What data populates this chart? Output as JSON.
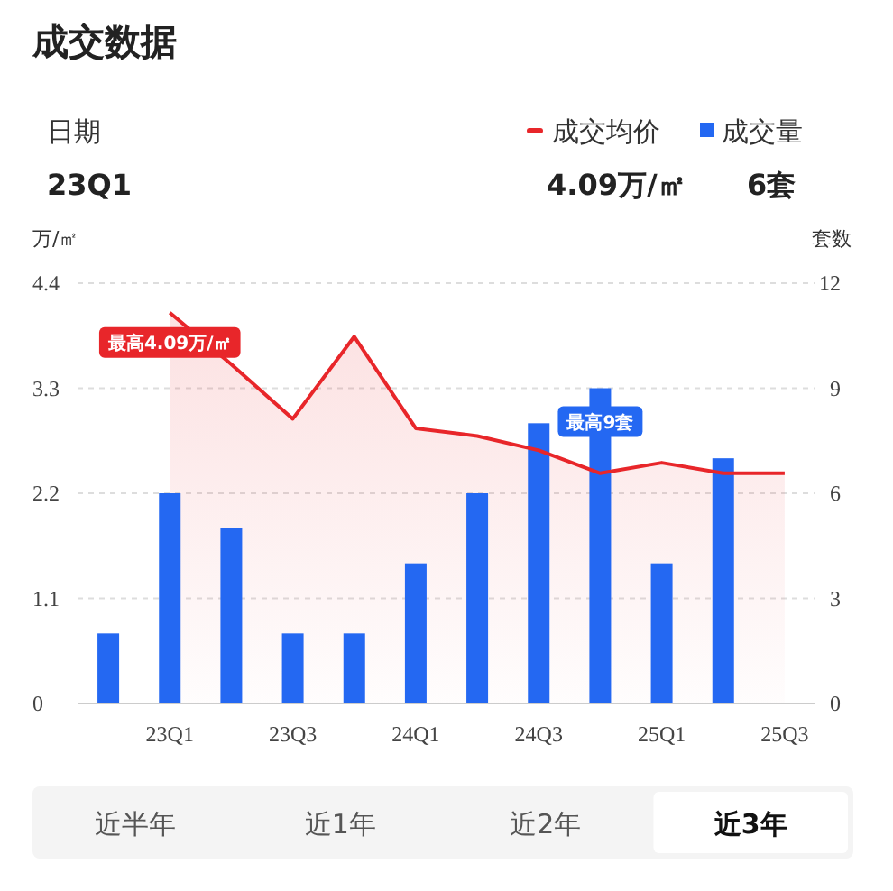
{
  "chart_data": {
    "type": "bar",
    "title": "成交数据",
    "ylabel": "万/㎡",
    "y2label": "套数",
    "categories": [
      null,
      "23Q1",
      null,
      "23Q3",
      null,
      "24Q1",
      null,
      "24Q3",
      null,
      "25Q1",
      null,
      "25Q3"
    ],
    "series": [
      {
        "name": "成交均价",
        "type": "area",
        "color": "#e8262a",
        "values": [
          null,
          4.09,
          3.55,
          2.98,
          3.84,
          2.88,
          2.8,
          2.65,
          2.41,
          2.52,
          2.41,
          2.41
        ]
      },
      {
        "name": "成交量",
        "axis": "y2",
        "color": "#2468f2",
        "values": [
          2,
          6,
          5,
          2,
          2,
          4,
          6,
          8,
          9,
          4,
          7,
          null
        ]
      }
    ],
    "ylim": [
      0,
      4.4
    ],
    "yticks": [
      0,
      1.1,
      2.2,
      3.3,
      4.4
    ],
    "y2lim": [
      0,
      12
    ],
    "y2ticks": [
      0,
      3,
      6,
      9,
      12
    ],
    "grid": "y",
    "legend": "top right",
    "annotations": [
      "日期",
      "23Q1",
      "4.09万/㎡",
      "6套",
      "近半年",
      "近1年",
      "近2年",
      "近3年",
      {
        "text": "最高4.09万/㎡",
        "x": "23Q1",
        "y": 4.09
      },
      "最高9套"
    ]
  }
}
